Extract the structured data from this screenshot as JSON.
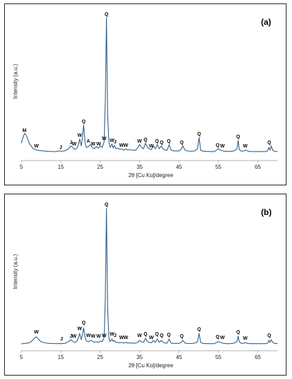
{
  "chart_data": [
    {
      "type": "line",
      "panel_label": "(a)",
      "xlabel": "2θ [Cu Kα]/degree",
      "ylabel": "Intensity (a.u.)",
      "xlim": [
        5,
        70
      ],
      "ylim": [
        0,
        100
      ],
      "x_ticks": [
        5,
        15,
        25,
        35,
        45,
        55,
        65
      ],
      "grid": false,
      "series": [
        {
          "x": [
            5.0,
            5.4,
            5.8,
            6.2,
            6.6,
            7.0,
            7.5,
            8.0,
            8.5,
            9.0,
            9.5,
            10.0,
            11.0,
            12.0,
            13.0,
            14.0,
            14.5,
            15.0,
            16.0,
            17.0,
            17.5,
            18.0,
            18.5,
            19.0,
            19.5,
            19.8,
            20.2,
            20.5,
            20.8,
            21.2,
            21.5,
            22.0,
            22.5,
            23.0,
            23.5,
            24.0,
            24.5,
            25.0,
            25.5,
            26.0,
            26.3,
            26.6,
            26.9,
            27.2,
            27.5,
            28.0,
            28.3,
            28.6,
            29.0,
            29.5,
            30.0,
            30.5,
            31.0,
            31.5,
            32.0,
            32.5,
            33.0,
            34.0,
            34.5,
            35.0,
            35.5,
            36.0,
            36.5,
            37.0,
            37.5,
            38.0,
            38.5,
            39.0,
            39.5,
            40.0,
            40.5,
            41.0,
            41.5,
            42.0,
            42.5,
            43.0,
            43.5,
            44.0,
            45.0,
            45.5,
            46.0,
            46.5,
            47.0,
            48.0,
            49.0,
            49.7,
            50.1,
            50.5,
            51.0,
            52.0,
            53.0,
            54.0,
            54.5,
            55.0,
            55.5,
            56.0,
            56.5,
            57.0,
            58.0,
            59.0,
            59.7,
            60.0,
            60.3,
            60.7,
            61.0,
            61.5,
            62.0,
            62.5,
            63.0,
            64.0,
            65.0,
            66.0,
            67.0,
            67.5,
            67.8,
            68.1,
            68.4,
            68.8,
            69.2,
            70.0
          ],
          "y": [
            10,
            14,
            17,
            16,
            13,
            10,
            8,
            6,
            5.5,
            5,
            4.8,
            4.6,
            4.3,
            4.1,
            4.0,
            4.0,
            4.5,
            4.2,
            4.5,
            6,
            8,
            7,
            5.5,
            6,
            9,
            13,
            8,
            14,
            23,
            10,
            7,
            7.5,
            9,
            7,
            6,
            7.5,
            6.5,
            8,
            7,
            11,
            40,
            100,
            30,
            11,
            7,
            9.5,
            6.5,
            8.5,
            6,
            6.5,
            5.5,
            6,
            5,
            6,
            5,
            5.5,
            5,
            5,
            6.5,
            9,
            7,
            6,
            10,
            7,
            6,
            5.5,
            8,
            6,
            9,
            6,
            8,
            6,
            5,
            5,
            9,
            5,
            4.5,
            4.5,
            4.4,
            5.5,
            8,
            5,
            4.5,
            4.2,
            4.5,
            6,
            14,
            5,
            4.3,
            4.1,
            4.0,
            4.0,
            5,
            6,
            5,
            4.6,
            4.3,
            4.1,
            4.1,
            4.5,
            6,
            12,
            5.5,
            4.5,
            4.2,
            4.5,
            5,
            4.3,
            4.0,
            4.0,
            4.0,
            4.0,
            4.0,
            4.5,
            7,
            5,
            8,
            5,
            4.2,
            4.0
          ]
        }
      ],
      "peak_labels": [
        {
          "text": "M",
          "x": 5.8,
          "y": 18
        },
        {
          "text": "W",
          "x": 8.8,
          "y": 7
        },
        {
          "text": "J",
          "x": 15.0,
          "y": 6
        },
        {
          "text": "J",
          "x": 17.6,
          "y": 9.5
        },
        {
          "text": "W",
          "x": 18.4,
          "y": 8.5
        },
        {
          "text": "W",
          "x": 19.8,
          "y": 14.5
        },
        {
          "text": "Q",
          "x": 20.8,
          "y": 24.5
        },
        {
          "text": "A",
          "x": 22.0,
          "y": 10.5
        },
        {
          "text": "W",
          "x": 23.2,
          "y": 8.5
        },
        {
          "text": "W",
          "x": 24.6,
          "y": 8.5
        },
        {
          "text": "W",
          "x": 26.0,
          "y": 12.5
        },
        {
          "text": "Q",
          "x": 26.6,
          "y": 101.5
        },
        {
          "text": "W",
          "x": 28.0,
          "y": 11
        },
        {
          "text": "J",
          "x": 28.8,
          "y": 10
        },
        {
          "text": "W",
          "x": 30.4,
          "y": 7.5
        },
        {
          "text": "W",
          "x": 31.5,
          "y": 7.5
        },
        {
          "text": "W",
          "x": 35.0,
          "y": 10.5
        },
        {
          "text": "Q",
          "x": 36.5,
          "y": 11.5
        },
        {
          "text": "W",
          "x": 38.0,
          "y": 7
        },
        {
          "text": "Q",
          "x": 39.4,
          "y": 10.5
        },
        {
          "text": "Q",
          "x": 40.6,
          "y": 9.5
        },
        {
          "text": "Q",
          "x": 42.4,
          "y": 10.5
        },
        {
          "text": "Q",
          "x": 45.7,
          "y": 9.5
        },
        {
          "text": "Q",
          "x": 50.1,
          "y": 15.5
        },
        {
          "text": "Q",
          "x": 54.8,
          "y": 7.5
        },
        {
          "text": "W",
          "x": 56.0,
          "y": 7
        },
        {
          "text": "Q",
          "x": 60.0,
          "y": 13.5
        },
        {
          "text": "W",
          "x": 61.8,
          "y": 7
        },
        {
          "text": "Q",
          "x": 67.9,
          "y": 9.5
        }
      ]
    },
    {
      "type": "line",
      "panel_label": "(b)",
      "xlabel": "2θ [Cu Kα]/degree",
      "ylabel": "Intensity (a.u.)",
      "xlim": [
        5,
        70
      ],
      "ylim": [
        0,
        100
      ],
      "x_ticks": [
        5,
        15,
        25,
        35,
        45,
        55,
        65
      ],
      "grid": false,
      "series": [
        {
          "x": [
            5.0,
            6.0,
            7.0,
            7.5,
            8.0,
            8.5,
            8.8,
            9.2,
            9.6,
            10.0,
            11.0,
            12.0,
            13.0,
            14.0,
            15.0,
            16.0,
            17.0,
            17.5,
            18.0,
            18.5,
            19.0,
            19.5,
            19.8,
            20.2,
            20.5,
            20.8,
            21.2,
            21.5,
            22.0,
            22.5,
            23.0,
            23.5,
            24.0,
            24.5,
            25.0,
            25.5,
            26.0,
            26.3,
            26.6,
            26.9,
            27.2,
            27.5,
            28.0,
            28.3,
            28.6,
            29.0,
            29.5,
            30.0,
            30.5,
            31.0,
            31.5,
            32.0,
            32.5,
            33.0,
            34.0,
            34.5,
            35.0,
            35.5,
            36.0,
            36.5,
            37.0,
            37.5,
            38.0,
            38.5,
            39.0,
            39.5,
            40.0,
            40.5,
            41.0,
            41.5,
            42.0,
            42.5,
            43.0,
            43.5,
            44.0,
            45.0,
            45.5,
            46.0,
            46.5,
            47.0,
            48.0,
            49.0,
            49.7,
            50.1,
            50.5,
            51.0,
            52.0,
            53.0,
            54.0,
            54.5,
            55.0,
            55.5,
            56.0,
            56.5,
            57.0,
            58.0,
            59.0,
            59.7,
            60.0,
            60.3,
            60.7,
            61.0,
            61.5,
            62.0,
            62.5,
            63.0,
            64.0,
            65.0,
            66.0,
            67.0,
            67.5,
            67.8,
            68.1,
            68.4,
            68.8,
            69.2,
            70.0
          ],
          "y": [
            2.5,
            2.8,
            3.3,
            4,
            5.5,
            7,
            7.5,
            6.5,
            5,
            4,
            3.2,
            2.8,
            2.7,
            2.6,
            2.6,
            2.8,
            4,
            5.5,
            4.5,
            3.5,
            4,
            7,
            10,
            5.5,
            9,
            14,
            7,
            4.5,
            4,
            5,
            4.5,
            3.5,
            4,
            3.5,
            4.5,
            4,
            7,
            35,
            100,
            28,
            7,
            4,
            6,
            4.2,
            5,
            3.5,
            3.5,
            3.2,
            3.5,
            3,
            3.5,
            3,
            3.2,
            3,
            3,
            3.5,
            5,
            4,
            3.5,
            6.5,
            4,
            3.5,
            3.2,
            5,
            3.5,
            6,
            3.5,
            5,
            3.5,
            3,
            3,
            6,
            3,
            2.8,
            2.8,
            2.8,
            3.5,
            5,
            3,
            2.8,
            2.7,
            3,
            4,
            10,
            3.5,
            2.8,
            2.6,
            2.6,
            2.6,
            3.5,
            4,
            3.5,
            3,
            2.8,
            2.6,
            2.6,
            3,
            4,
            8,
            4,
            3,
            2.8,
            3,
            3.3,
            2.8,
            2.6,
            2.6,
            2.6,
            2.6,
            2.6,
            3,
            5,
            3.5,
            5.5,
            3.5,
            2.8,
            2.6
          ]
        }
      ],
      "peak_labels": [
        {
          "text": "W",
          "x": 8.8,
          "y": 10
        },
        {
          "text": "J",
          "x": 15.2,
          "y": 5
        },
        {
          "text": "J",
          "x": 17.6,
          "y": 7
        },
        {
          "text": "W",
          "x": 18.4,
          "y": 7
        },
        {
          "text": "W",
          "x": 19.8,
          "y": 12.5
        },
        {
          "text": "Q",
          "x": 20.8,
          "y": 16.5
        },
        {
          "text": "W",
          "x": 22.0,
          "y": 7.5
        },
        {
          "text": "W",
          "x": 23.2,
          "y": 7
        },
        {
          "text": "W",
          "x": 24.6,
          "y": 7
        },
        {
          "text": "W",
          "x": 26.0,
          "y": 7.5
        },
        {
          "text": "Q",
          "x": 26.6,
          "y": 101.5
        },
        {
          "text": "W",
          "x": 28.0,
          "y": 8.5
        },
        {
          "text": "J",
          "x": 28.8,
          "y": 7.5
        },
        {
          "text": "W",
          "x": 30.4,
          "y": 6
        },
        {
          "text": "W",
          "x": 31.5,
          "y": 6
        },
        {
          "text": "W",
          "x": 35.0,
          "y": 7.5
        },
        {
          "text": "Q",
          "x": 36.5,
          "y": 8.5
        },
        {
          "text": "W",
          "x": 38.0,
          "y": 6
        },
        {
          "text": "Q",
          "x": 39.4,
          "y": 8.5
        },
        {
          "text": "Q",
          "x": 40.6,
          "y": 7.5
        },
        {
          "text": "Q",
          "x": 42.4,
          "y": 8
        },
        {
          "text": "Q",
          "x": 45.7,
          "y": 7
        },
        {
          "text": "Q",
          "x": 50.1,
          "y": 12
        },
        {
          "text": "Q",
          "x": 54.8,
          "y": 6.5
        },
        {
          "text": "W",
          "x": 56.0,
          "y": 6
        },
        {
          "text": "Q",
          "x": 60.0,
          "y": 10
        },
        {
          "text": "W",
          "x": 61.8,
          "y": 5.5
        },
        {
          "text": "Q",
          "x": 67.9,
          "y": 7.5
        }
      ]
    }
  ]
}
